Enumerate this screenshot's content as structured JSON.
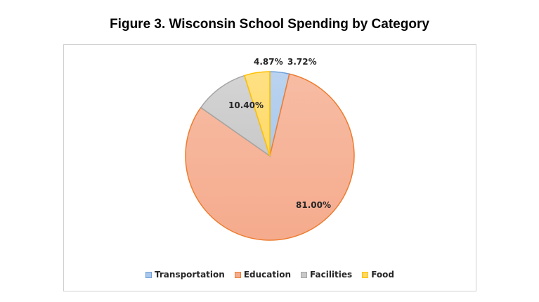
{
  "title": "Figure 3. Wisconsin School Spending by Category",
  "chart_data": {
    "type": "pie",
    "slices": [
      {
        "name": "Transportation",
        "value": 3.72,
        "label": "3.72%",
        "fill": "#a9c8ec",
        "stroke": "#6f9fd8"
      },
      {
        "name": "Education",
        "value": 81.0,
        "label": "81.00%",
        "fill": "#f5ab8d",
        "stroke": "#ed7d31"
      },
      {
        "name": "Facilities",
        "value": 10.4,
        "label": "10.40%",
        "fill": "#c9c9c9",
        "stroke": "#a5a5a5"
      },
      {
        "name": "Food",
        "value": 4.87,
        "label": "4.87%",
        "fill": "#ffd966",
        "stroke": "#ffc000"
      }
    ],
    "legend_position": "bottom"
  }
}
